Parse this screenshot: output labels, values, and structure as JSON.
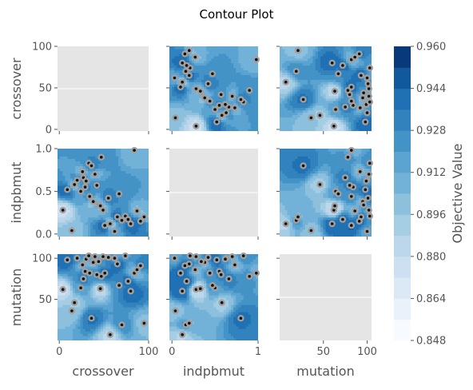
{
  "chart_data": {
    "type": "contour",
    "title": "Contour Plot",
    "params": [
      "crossover",
      "indpbmut",
      "mutation"
    ],
    "ranges": {
      "crossover": [
        -2,
        100
      ],
      "indpbmut": [
        -0.03,
        1.0
      ],
      "mutation": [
        0,
        105
      ]
    },
    "row_ticks": {
      "crossover": [
        "100",
        "50",
        "0"
      ],
      "indpbmut": [
        "1.0",
        "0.5",
        "0.0"
      ],
      "mutation": [
        "100",
        "50"
      ]
    },
    "col_ticks": {
      "crossover": [
        "0",
        "100"
      ],
      "indpbmut": [
        "0",
        "1"
      ],
      "mutation": [
        "50",
        "100"
      ]
    },
    "colorbar": {
      "label": "Objective Value",
      "ticks": [
        "0.960",
        "0.944",
        "0.928",
        "0.912",
        "0.896",
        "0.880",
        "0.864",
        "0.848"
      ],
      "min": 0.848,
      "max": 0.96,
      "levels": 14,
      "colormap": [
        "#f7fbff",
        "#e9f2fa",
        "#dbe9f6",
        "#cde0f1",
        "#bcd7eb",
        "#a5cde3",
        "#8dc0dd",
        "#72b2d8",
        "#5ba3d0",
        "#4493c6",
        "#3282be",
        "#2070b4",
        "#11589d",
        "#083a7a"
      ]
    },
    "grid": true,
    "empty_panel_color": "#e5e5e5",
    "trials": [
      {
        "crossover": 4,
        "indpbmut": 0.28,
        "mutation": 62
      },
      {
        "crossover": 9,
        "indpbmut": 0.52,
        "mutation": 98
      },
      {
        "crossover": 14,
        "indpbmut": 0.04,
        "mutation": 36
      },
      {
        "crossover": 17,
        "indpbmut": 0.58,
        "mutation": 46
      },
      {
        "crossover": 20,
        "indpbmut": 0.63,
        "mutation": 100
      },
      {
        "crossover": 24,
        "indpbmut": 0.5,
        "mutation": 64
      },
      {
        "crossover": 26,
        "indpbmut": 0.73,
        "mutation": 92
      },
      {
        "crossover": 27,
        "indpbmut": 0.66,
        "mutation": 75
      },
      {
        "crossover": 29,
        "indpbmut": 0.55,
        "mutation": 84
      },
      {
        "crossover": 30,
        "indpbmut": 0.62,
        "mutation": 99
      },
      {
        "crossover": 33,
        "indpbmut": 0.83,
        "mutation": 103
      },
      {
        "crossover": 34,
        "indpbmut": 0.44,
        "mutation": 82
      },
      {
        "crossover": 36,
        "indpbmut": 0.8,
        "mutation": 27
      },
      {
        "crossover": 38,
        "indpbmut": 0.38,
        "mutation": 95
      },
      {
        "crossover": 40,
        "indpbmut": 0.7,
        "mutation": 102
      },
      {
        "crossover": 42,
        "indpbmut": 0.57,
        "mutation": 80
      },
      {
        "crossover": 44,
        "indpbmut": 0.34,
        "mutation": 96
      },
      {
        "crossover": 46,
        "indpbmut": 0.33,
        "mutation": 63
      },
      {
        "crossover": 47,
        "indpbmut": 0.9,
        "mutation": 78
      },
      {
        "crossover": 49,
        "indpbmut": 0.28,
        "mutation": 102
      },
      {
        "crossover": 51,
        "indpbmut": 0.1,
        "mutation": 82
      },
      {
        "crossover": 55,
        "indpbmut": 0.42,
        "mutation": 101
      },
      {
        "crossover": 57,
        "indpbmut": 0.12,
        "mutation": 7
      },
      {
        "crossover": 62,
        "indpbmut": 0.03,
        "mutation": 100
      },
      {
        "crossover": 65,
        "indpbmut": 0.2,
        "mutation": 93
      },
      {
        "crossover": 67,
        "indpbmut": 0.47,
        "mutation": 67
      },
      {
        "crossover": 70,
        "indpbmut": 0.16,
        "mutation": 19
      },
      {
        "crossover": 74,
        "indpbmut": 0.21,
        "mutation": 103
      },
      {
        "crossover": 77,
        "indpbmut": 0.17,
        "mutation": 72
      },
      {
        "crossover": 80,
        "indpbmut": 0.12,
        "mutation": 60
      },
      {
        "crossover": 84,
        "indpbmut": 0.98,
        "mutation": 82
      },
      {
        "crossover": 87,
        "indpbmut": 0.27,
        "mutation": 86
      },
      {
        "crossover": 91,
        "indpbmut": 0.15,
        "mutation": 91
      },
      {
        "crossover": 95,
        "indpbmut": 0.2,
        "mutation": 21
      }
    ]
  }
}
